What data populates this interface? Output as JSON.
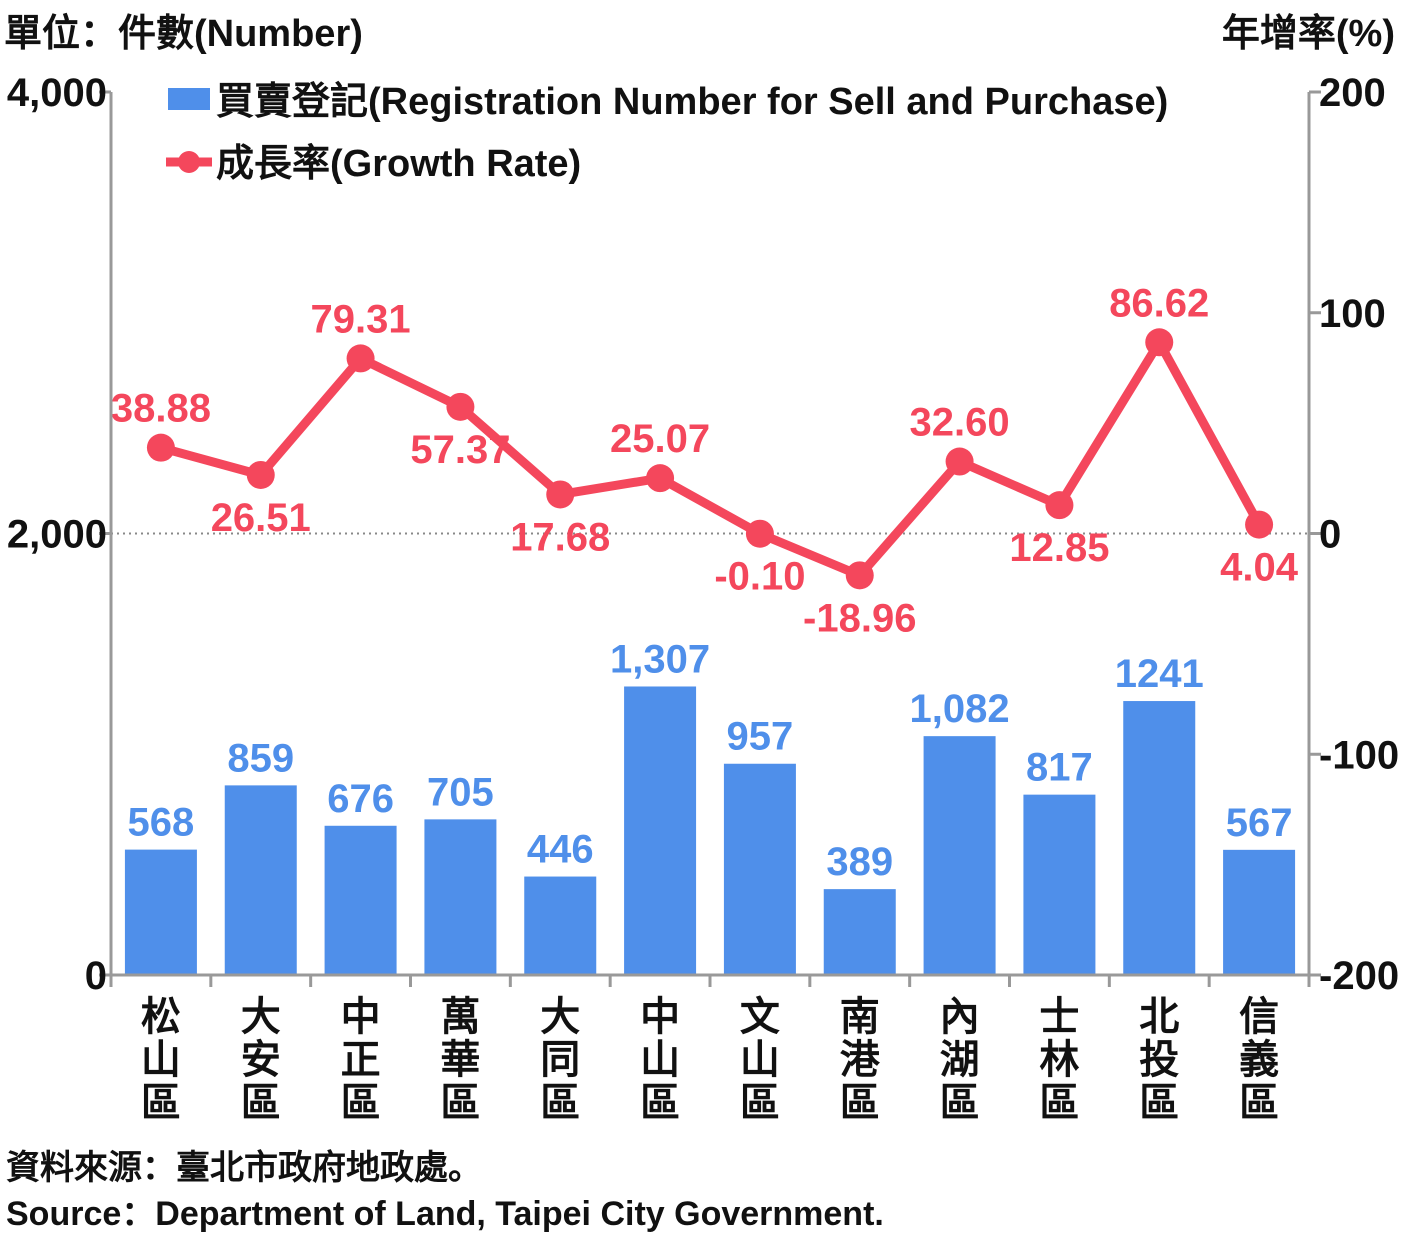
{
  "header": {
    "left_unit": "單位：件數(Number)",
    "right_unit": "年增率(%)"
  },
  "footer": {
    "source_zh": "資料來源：臺北市政府地政處。",
    "source_en": "Source：Department of Land, Taipei City Government."
  },
  "colors": {
    "bar": "#4F8FEA",
    "bar_label": "#4F8FEA",
    "line": "#F4475C",
    "line_label": "#F4475C",
    "axis": "#999999",
    "text": "#111111"
  },
  "chart_data": {
    "type": "bar",
    "categories": [
      "松山區",
      "大安區",
      "中正區",
      "萬華區",
      "大同區",
      "中山區",
      "文山區",
      "南港區",
      "內湖區",
      "士林區",
      "北投區",
      "信義區"
    ],
    "series": [
      {
        "name": "買賣登記(Registration Number for Sell and Purchase)",
        "type": "bar",
        "axis": "left",
        "values": [
          568,
          859,
          676,
          705,
          446,
          1307,
          957,
          389,
          1082,
          817,
          1241,
          567
        ],
        "labels": [
          "568",
          "859",
          "676",
          "705",
          "446",
          "1,307",
          "957",
          "389",
          "1,082",
          "817",
          "1241",
          "567"
        ]
      },
      {
        "name": "成長率(Growth Rate)",
        "type": "line",
        "axis": "right",
        "values": [
          38.88,
          26.51,
          79.31,
          57.37,
          17.68,
          25.07,
          -0.1,
          -18.96,
          32.6,
          12.85,
          86.62,
          4.04
        ],
        "labels": [
          "38.88",
          "26.51",
          "79.31",
          "57.37",
          "17.68",
          "25.07",
          "-0.10",
          "-18.96",
          "32.60",
          "12.85",
          "86.62",
          "4.04"
        ]
      }
    ],
    "y_left": {
      "range": [
        0,
        4000
      ],
      "ticks": [
        "0",
        "2,000",
        "4,000"
      ]
    },
    "y_right": {
      "range": [
        -200,
        200
      ],
      "ticks": [
        "-200",
        "-100",
        "0",
        "100",
        "200"
      ]
    },
    "reference_line": {
      "axis": "right",
      "value": 0,
      "style": "dotted"
    },
    "legend": {
      "placement": "top-left"
    }
  }
}
